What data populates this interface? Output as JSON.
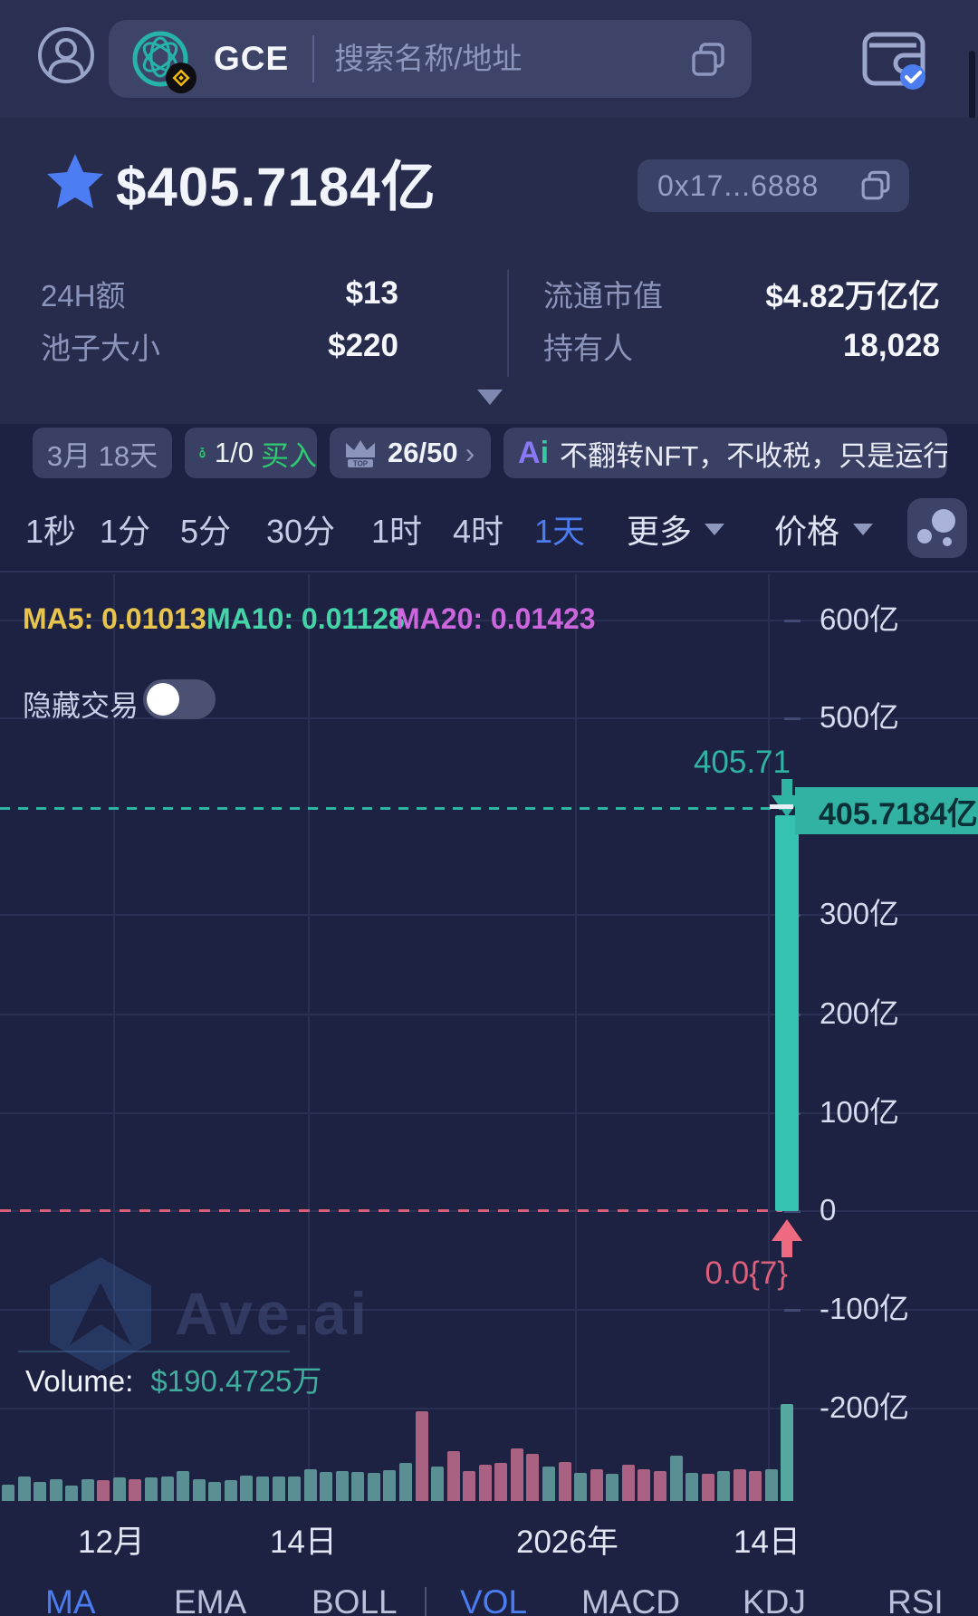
{
  "topbar": {
    "token_symbol": "GCE",
    "search_placeholder": "搜索名称/地址"
  },
  "header": {
    "price": "$405.7184亿",
    "address_short": "0x17...6888",
    "stats": [
      {
        "label": "24H额",
        "value": "$13"
      },
      {
        "label": "流通市值",
        "value": "$4.82万亿亿"
      },
      {
        "label": "池子大小",
        "value": "$220"
      },
      {
        "label": "持有人",
        "value": "18,028"
      }
    ]
  },
  "tags": {
    "age": "3月 18天",
    "money_symbol": "$",
    "buy_ratio": "1/0",
    "buy_label": "买入",
    "rank_badge": "TOP",
    "rank": "26/50",
    "ai_logo_a": "A",
    "ai_logo_i": "i",
    "ai_text": "不翻转NFT，不收税，只是运行..."
  },
  "glyphs": {
    "chevron": "›"
  },
  "timeframes": {
    "items": [
      "1秒",
      "1分",
      "5分",
      "30分",
      "1时",
      "4时",
      "1天"
    ],
    "active": "1天",
    "more_label": "更多",
    "price_label": "价格"
  },
  "chart": {
    "ma5_label": "MA5: 0.01013",
    "ma10_label": "MA10: 0.01128",
    "ma20_label": "MA20: 0.01423",
    "hide_trades_label": "隐藏交易",
    "current_price_tag": "405.7184亿",
    "candle_high_label": "405.71",
    "candle_low_label": "0.0{7}",
    "volume_label": "Volume:",
    "volume_value": "$190.4725万",
    "watermark": "Ave.ai"
  },
  "chart_data": {
    "type": "candlestick",
    "panes": [
      "price",
      "volume"
    ],
    "y_axis_labels": [
      "600亿",
      "500亿",
      "300亿",
      "200亿",
      "100亿",
      "0",
      "-100亿",
      "-200亿"
    ],
    "y_axis_values_yi": [
      600,
      500,
      300,
      200,
      100,
      0,
      -100,
      -200
    ],
    "x_axis_labels": [
      "12月",
      "14日",
      "2026年",
      "14日"
    ],
    "current_price_yi": 405.7184,
    "current_price_label": "405.7184亿",
    "candle_high_label": "405.71",
    "prev_price_label": "0.0{7}",
    "ma": {
      "ma5": 0.01013,
      "ma10": 0.01128,
      "ma20": 0.01423
    },
    "volume_display": "$190.4725万",
    "volume": {
      "heights": [
        18,
        27,
        21,
        24,
        17,
        24,
        23,
        26,
        24,
        26,
        27,
        33,
        24,
        21,
        23,
        28,
        27,
        27,
        27,
        35,
        32,
        33,
        32,
        31,
        34,
        42,
        99,
        38,
        55,
        33,
        40,
        42,
        58,
        52,
        38,
        43,
        31,
        35,
        30,
        40,
        35,
        33,
        50,
        31,
        30,
        33,
        35,
        33,
        35,
        107
      ],
      "colors": [
        "t",
        "t",
        "t",
        "t",
        "t",
        "t",
        "p",
        "t",
        "p",
        "t",
        "t",
        "t",
        "t",
        "t",
        "t",
        "t",
        "t",
        "t",
        "t",
        "t",
        "t",
        "t",
        "t",
        "t",
        "t",
        "t",
        "p",
        "t",
        "p",
        "p",
        "p",
        "p",
        "p",
        "p",
        "t",
        "p",
        "t",
        "p",
        "t",
        "p",
        "p",
        "p",
        "t",
        "t",
        "p",
        "t",
        "p",
        "p",
        "t",
        "T"
      ]
    }
  },
  "bottom_tabs": {
    "items": [
      "MA",
      "EMA",
      "BOLL",
      "VOL",
      "MACD",
      "KDJ",
      "RSI"
    ],
    "active": [
      "MA",
      "VOL"
    ]
  },
  "colors": {
    "accent_blue": "#4b7cf0",
    "candle_up": "#35c2b0",
    "price_line_teal": "#2fb3a3",
    "price_line_red": "#d95f78",
    "ma5": "#e7c44d",
    "ma10": "#45d4a8",
    "ma20": "#cb66dc",
    "volume_up": "#5a8f93",
    "volume_down": "#a96281",
    "volume_up_bright": "#54a89d",
    "buy_green": "#2ecc71",
    "tag_bg": "#31b2a2"
  }
}
